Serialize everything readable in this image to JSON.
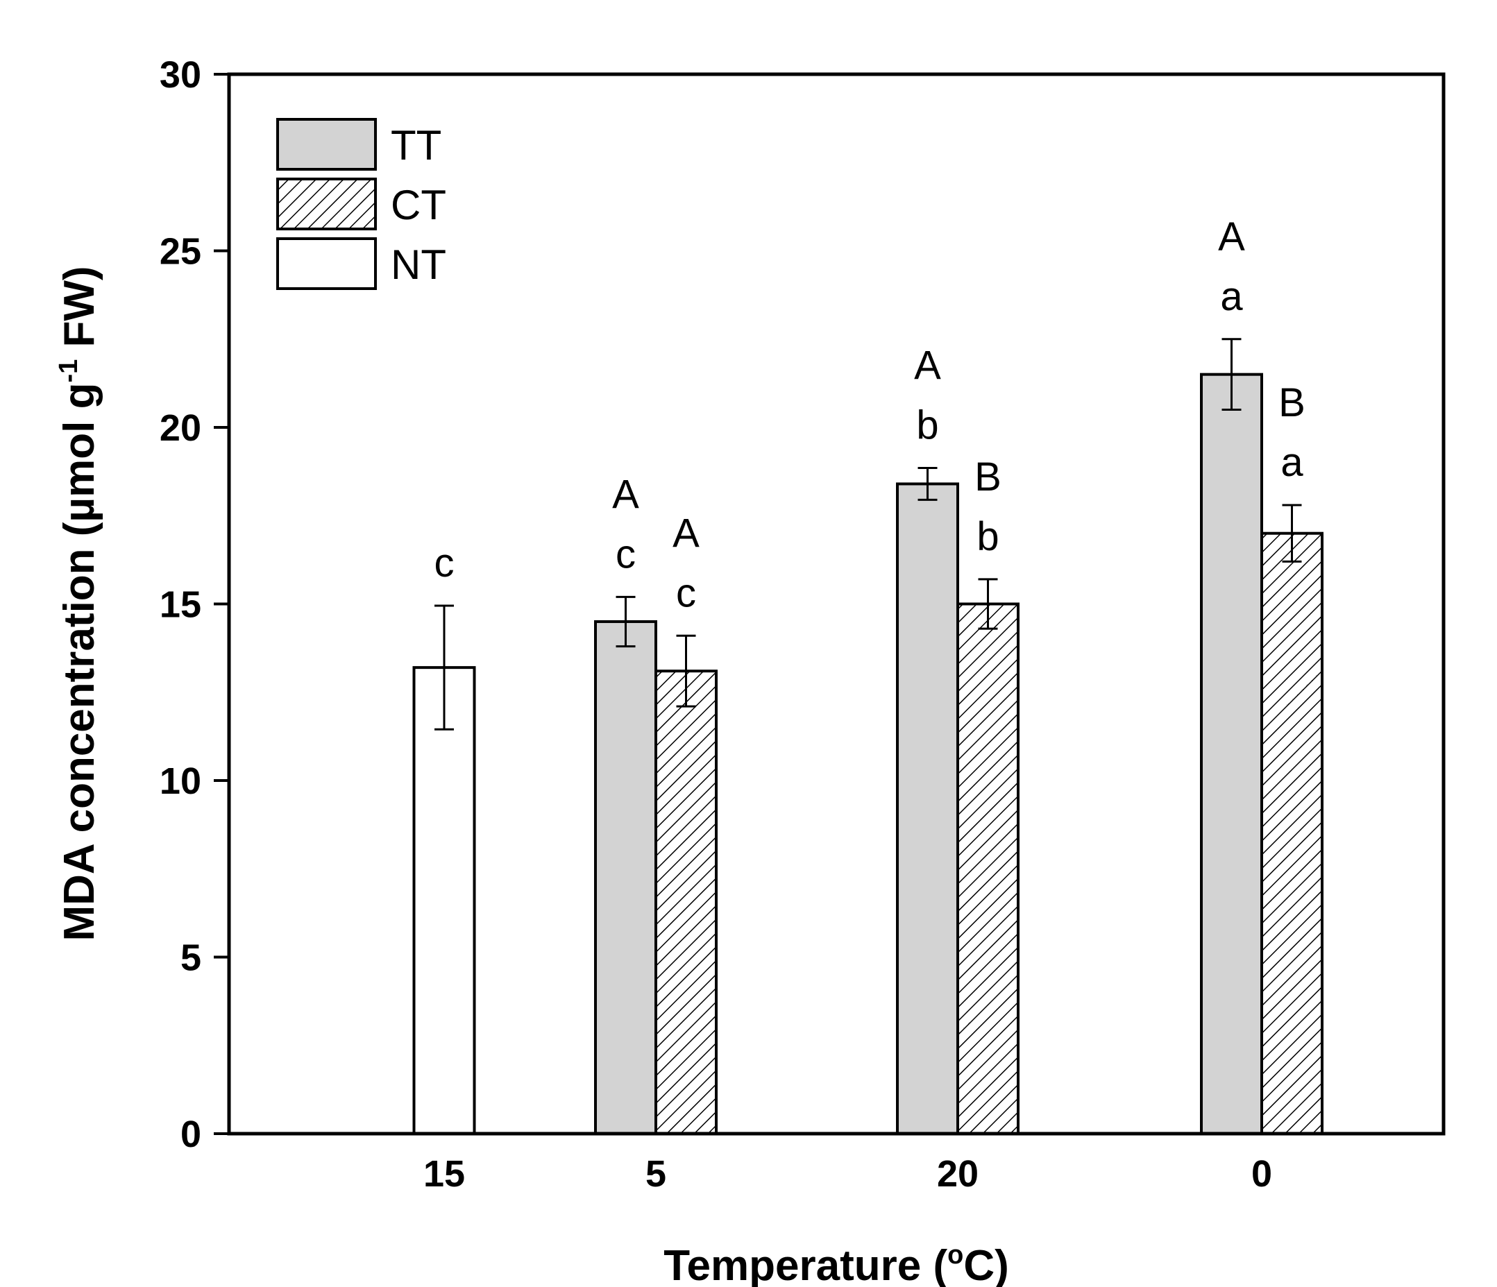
{
  "chart_data": {
    "type": "bar",
    "title": "",
    "xlabel": "Temperature (°C)",
    "xlabel_parts": {
      "main": "Temperature (",
      "sup": "o",
      "unit": "C)"
    },
    "ylabel": "MDA concentration (µmol g-1 FW)",
    "ylabel_parts": {
      "main": "MDA concentration (µmol g",
      "sup": "-1",
      "unit": " FW)"
    },
    "ylim": [
      0,
      30
    ],
    "yticks": [
      0,
      5,
      10,
      15,
      20,
      25,
      30
    ],
    "categories": [
      "15",
      "5",
      "20",
      "0"
    ],
    "grid": false,
    "legend_position": "top-left",
    "series": [
      {
        "name": "TT",
        "fill": "#d3d3d3",
        "pattern": "solid",
        "values": [
          null,
          14.5,
          18.4,
          21.5
        ],
        "errors": [
          null,
          0.7,
          0.45,
          1.0
        ],
        "letters_upper": [
          null,
          "A",
          "A",
          "A"
        ],
        "letters_lower": [
          null,
          "c",
          "b",
          "a"
        ]
      },
      {
        "name": "CT",
        "fill": "#ffffff",
        "pattern": "hatch",
        "values": [
          null,
          13.1,
          15.0,
          17.0
        ],
        "errors": [
          null,
          1.0,
          0.7,
          0.8
        ],
        "letters_upper": [
          null,
          "A",
          "B",
          "B"
        ],
        "letters_lower": [
          null,
          "c",
          "b",
          "a"
        ]
      },
      {
        "name": "NT",
        "fill": "#ffffff",
        "pattern": "solid",
        "values": [
          13.2,
          null,
          null,
          null
        ],
        "errors": [
          1.75,
          null,
          null,
          null
        ],
        "letters_upper": [
          null,
          null,
          null,
          null
        ],
        "letters_lower": [
          "c",
          null,
          null,
          null
        ]
      }
    ]
  }
}
